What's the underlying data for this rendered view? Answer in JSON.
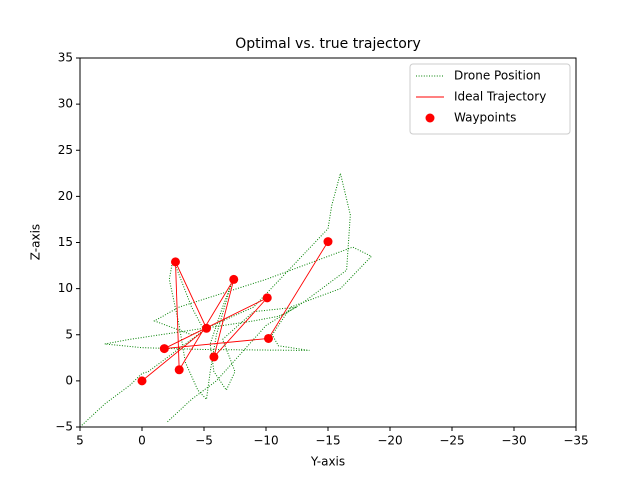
{
  "chart_data": {
    "type": "line",
    "title": "Optimal vs. true trajectory",
    "xlabel": "Y-axis",
    "ylabel": "Z-axis",
    "xlim": [
      5,
      -35
    ],
    "ylim": [
      -5,
      35
    ],
    "xticks": [
      5,
      0,
      {
        "value": -5,
        "label": "−5"
      },
      {
        "value": -10,
        "label": "−10"
      },
      {
        "value": -15,
        "label": "−15"
      },
      {
        "value": -20,
        "label": "−20"
      },
      {
        "value": -25,
        "label": "−25"
      },
      {
        "value": -30,
        "label": "−30"
      },
      {
        "value": -35,
        "label": "−35"
      }
    ],
    "yticks": [
      {
        "value": -5,
        "label": "−5"
      },
      0,
      5,
      10,
      15,
      20,
      25,
      30,
      35
    ],
    "legend": "upper right",
    "series": [
      {
        "name": "Drone Position",
        "color": "#008000",
        "style": "dotted",
        "x": [
          5,
          3,
          1,
          0,
          -0.5,
          -2,
          -4,
          -5,
          -4,
          -2.5,
          -2.2,
          -3,
          -3.5,
          -4.5,
          -5.2,
          -5.5,
          -6,
          -7.2,
          -6.5,
          -5.5,
          -5.8,
          -6.8,
          -7.5,
          -6.5,
          -9,
          -12.5,
          -11,
          -9,
          -4,
          1,
          3,
          0,
          -5,
          -13.5,
          -11,
          -10.5,
          -12,
          -16,
          -18.5,
          -17,
          -10,
          -3,
          -1,
          -4,
          -9,
          -15,
          -15.3,
          -16,
          -16.8,
          -16.5,
          -13,
          -10,
          -6,
          -4,
          -2
        ],
        "y": [
          -5,
          -2.5,
          -0.5,
          0.8,
          1,
          2.5,
          4.5,
          5.5,
          8,
          13.2,
          11,
          6,
          2,
          -1,
          -2,
          1,
          5,
          10.5,
          8,
          4,
          1,
          -1,
          1,
          4.5,
          7.5,
          8,
          7,
          6.5,
          5.5,
          4.5,
          4,
          3.6,
          3.4,
          3.3,
          3.8,
          5,
          8,
          10,
          13.5,
          14.5,
          11,
          8,
          6.5,
          5,
          8,
          16.5,
          19,
          22.5,
          18,
          12,
          8.5,
          6,
          0,
          -2,
          -4.5
        ]
      },
      {
        "name": "Ideal Trajectory",
        "color": "#ff0000",
        "style": "solid",
        "x": [
          0,
          -5.2,
          -2.7,
          -3,
          -7.4,
          -5.8,
          -10.1,
          -1.8,
          -10.2,
          -15
        ],
        "y": [
          0,
          5.7,
          12.9,
          1.2,
          11,
          2.6,
          9,
          3.5,
          4.6,
          15.1
        ]
      },
      {
        "name": "Waypoints",
        "color": "#ff0000",
        "style": "markers",
        "x": [
          0,
          -1.8,
          -3,
          -2.7,
          -5.2,
          -5.8,
          -7.4,
          -10.1,
          -10.2,
          -15
        ],
        "y": [
          0,
          3.5,
          1.2,
          12.9,
          5.7,
          2.6,
          11,
          9,
          4.6,
          15.1
        ]
      }
    ]
  }
}
